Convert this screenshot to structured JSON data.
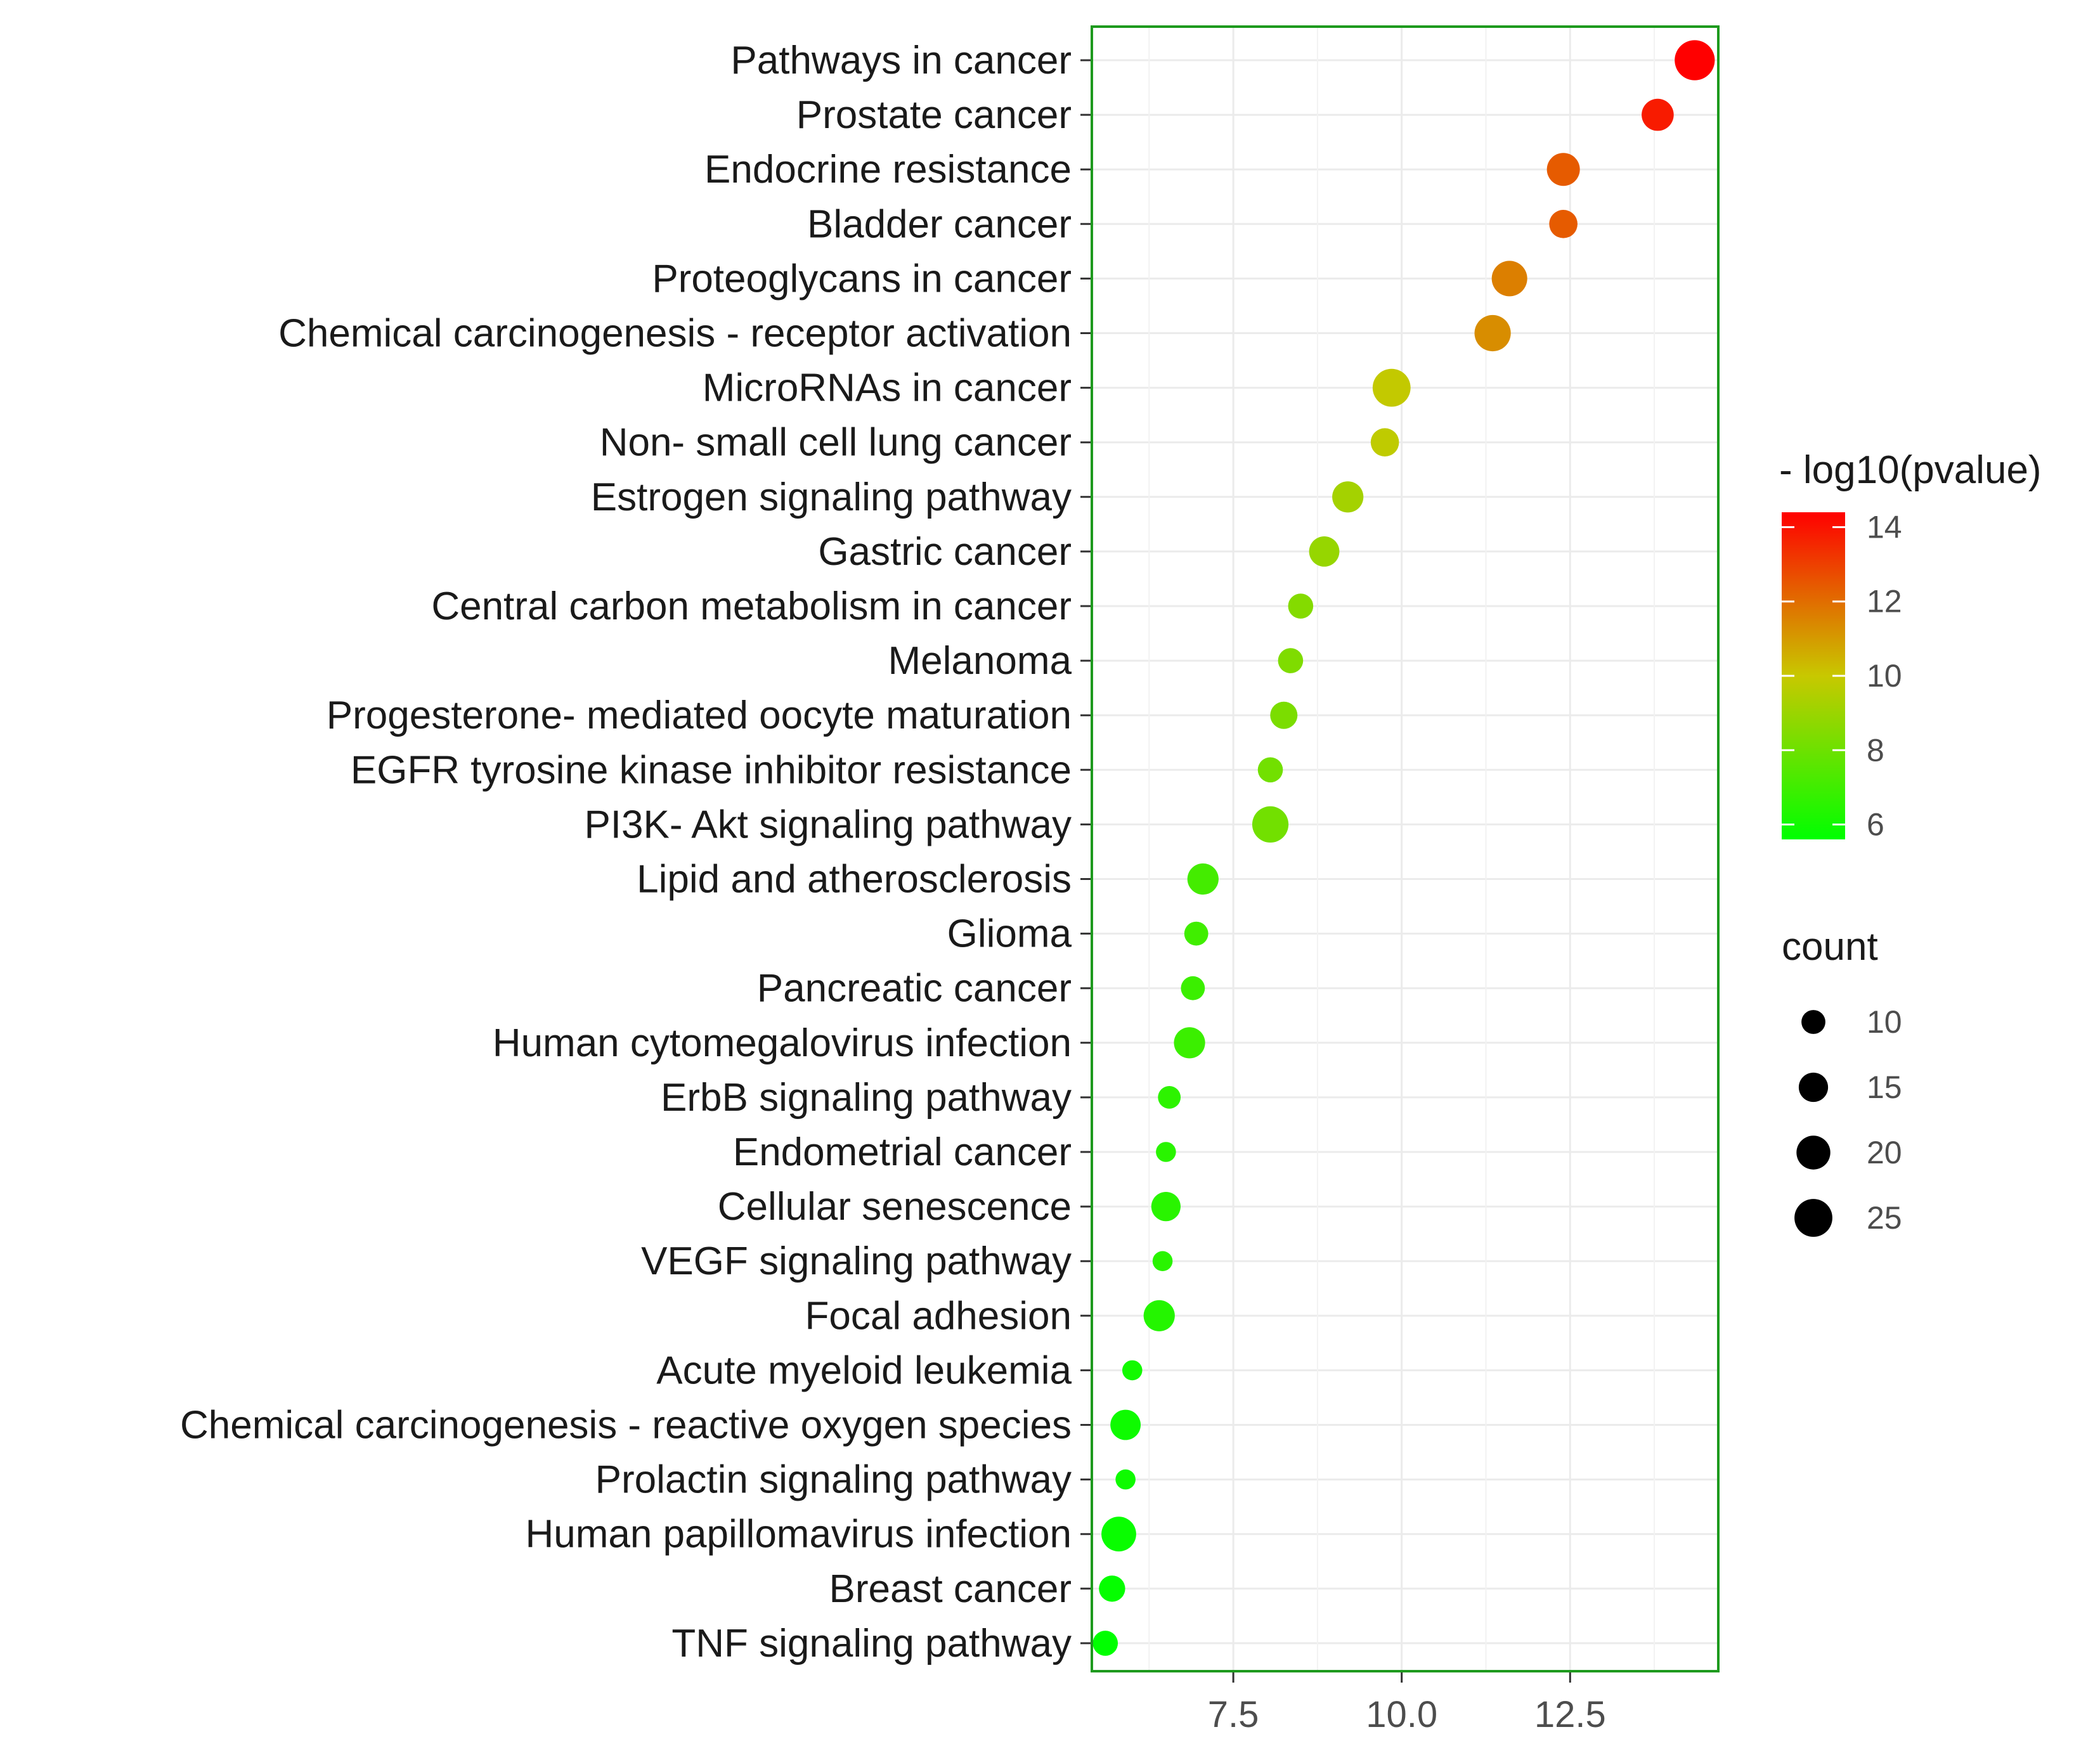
{
  "chart_data": {
    "type": "scatter",
    "title": "",
    "xlabel": "",
    "ylabel": "",
    "xlim": [
      5.4,
      14.7
    ],
    "x_ticks": [
      "7.5",
      "10.0",
      "12.5"
    ],
    "x_tick_values": [
      7.5,
      10.0,
      12.5
    ],
    "grid": true,
    "categories": [
      "Pathways in cancer",
      "Prostate cancer",
      "Endocrine resistance",
      "Bladder cancer",
      "Proteoglycans in cancer",
      "Chemical carcinogenesis -  receptor activation",
      "MicroRNAs in cancer",
      "Non- small cell lung cancer",
      "Estrogen signaling pathway",
      "Gastric cancer",
      "Central carbon metabolism in cancer",
      "Melanoma",
      "Progesterone- mediated oocyte maturation",
      "EGFR tyrosine kinase inhibitor resistance",
      "PI3K- Akt signaling pathway",
      "Lipid and atherosclerosis",
      "Glioma",
      "Pancreatic cancer",
      "Human cytomegalovirus infection",
      "ErbB signaling pathway",
      "Endometrial cancer",
      "Cellular senescence",
      "VEGF signaling pathway",
      "Focal adhesion",
      "Acute myeloid leukemia",
      "Chemical carcinogenesis -  reactive oxygen species",
      "Prolactin signaling pathway",
      "Human papillomavirus infection",
      "Breast cancer",
      "TNF signaling pathway"
    ],
    "x": [
      14.35,
      13.8,
      12.4,
      12.4,
      11.6,
      11.35,
      9.85,
      9.75,
      9.2,
      8.85,
      8.5,
      8.35,
      8.25,
      8.05,
      8.05,
      7.05,
      6.95,
      6.9,
      6.85,
      6.55,
      6.5,
      6.5,
      6.45,
      6.4,
      6.0,
      5.9,
      5.9,
      5.8,
      5.7,
      5.6
    ],
    "pvalue_log": [
      14.4,
      13.8,
      12.4,
      12.4,
      11.6,
      11.3,
      9.9,
      9.8,
      9.2,
      8.9,
      8.5,
      8.4,
      8.3,
      8.1,
      8.1,
      7.1,
      7.0,
      6.9,
      6.9,
      6.6,
      6.5,
      6.5,
      6.5,
      6.4,
      6.0,
      5.9,
      5.9,
      5.8,
      5.7,
      5.6
    ],
    "count": [
      28,
      18,
      19,
      14,
      22,
      23,
      25,
      14,
      17,
      16,
      11,
      11,
      13,
      11,
      23,
      17,
      10,
      10,
      17,
      9,
      7,
      15,
      7,
      17,
      7,
      16,
      7,
      21,
      12,
      11
    ],
    "color_legend": {
      "title": "- log10(pvalue)",
      "ticks": [
        "6",
        "8",
        "10",
        "12",
        "14"
      ],
      "tick_values": [
        6,
        8,
        10,
        12,
        14
      ],
      "range": [
        5.6,
        14.4
      ],
      "colors": [
        "#00ff00",
        "#c8c800",
        "#ff0000"
      ]
    },
    "size_legend": {
      "title": "count",
      "ticks": [
        "10",
        "15",
        "20",
        "25"
      ],
      "tick_values": [
        10,
        15,
        20,
        25
      ]
    },
    "legend_position": "right",
    "panel_border_color": "#1e9a1e"
  }
}
